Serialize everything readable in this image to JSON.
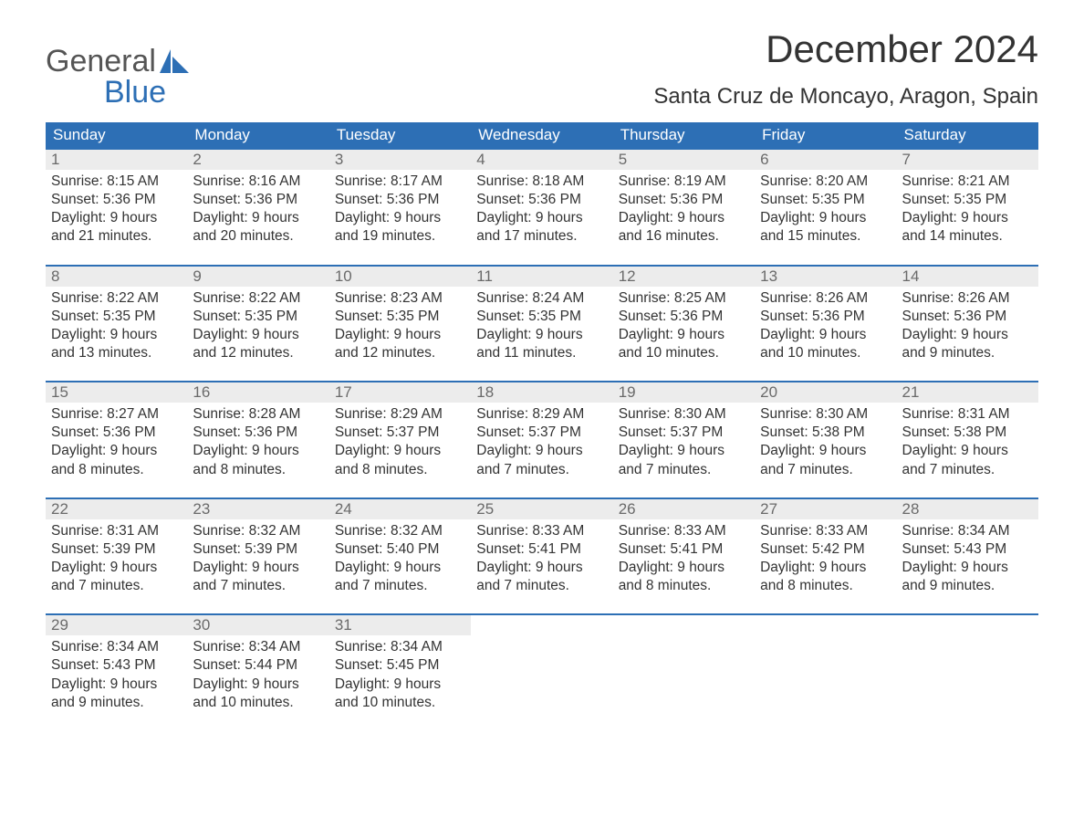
{
  "brand": {
    "word1": "General",
    "word2": "Blue",
    "color_accent": "#2d6fb5"
  },
  "title": "December 2024",
  "subtitle": "Santa Cruz de Moncayo, Aragon, Spain",
  "colors": {
    "header_bg": "#2d6fb5",
    "header_text": "#ffffff",
    "daynum_bg": "#ececec",
    "daynum_text": "#6a6a6a",
    "body_text": "#333333",
    "row_border": "#2d6fb5",
    "page_bg": "#ffffff"
  },
  "fonts": {
    "title_size_pt": 32,
    "subtitle_size_pt": 18,
    "dayhead_size_pt": 13,
    "body_size_pt": 12
  },
  "day_headers": [
    "Sunday",
    "Monday",
    "Tuesday",
    "Wednesday",
    "Thursday",
    "Friday",
    "Saturday"
  ],
  "labels": {
    "sunrise": "Sunrise:",
    "sunset": "Sunset:",
    "daylight": "Daylight:"
  },
  "weeks": [
    [
      {
        "n": "1",
        "rise": "8:15 AM",
        "set": "5:36 PM",
        "dl": "9 hours and 21 minutes."
      },
      {
        "n": "2",
        "rise": "8:16 AM",
        "set": "5:36 PM",
        "dl": "9 hours and 20 minutes."
      },
      {
        "n": "3",
        "rise": "8:17 AM",
        "set": "5:36 PM",
        "dl": "9 hours and 19 minutes."
      },
      {
        "n": "4",
        "rise": "8:18 AM",
        "set": "5:36 PM",
        "dl": "9 hours and 17 minutes."
      },
      {
        "n": "5",
        "rise": "8:19 AM",
        "set": "5:36 PM",
        "dl": "9 hours and 16 minutes."
      },
      {
        "n": "6",
        "rise": "8:20 AM",
        "set": "5:35 PM",
        "dl": "9 hours and 15 minutes."
      },
      {
        "n": "7",
        "rise": "8:21 AM",
        "set": "5:35 PM",
        "dl": "9 hours and 14 minutes."
      }
    ],
    [
      {
        "n": "8",
        "rise": "8:22 AM",
        "set": "5:35 PM",
        "dl": "9 hours and 13 minutes."
      },
      {
        "n": "9",
        "rise": "8:22 AM",
        "set": "5:35 PM",
        "dl": "9 hours and 12 minutes."
      },
      {
        "n": "10",
        "rise": "8:23 AM",
        "set": "5:35 PM",
        "dl": "9 hours and 12 minutes."
      },
      {
        "n": "11",
        "rise": "8:24 AM",
        "set": "5:35 PM",
        "dl": "9 hours and 11 minutes."
      },
      {
        "n": "12",
        "rise": "8:25 AM",
        "set": "5:36 PM",
        "dl": "9 hours and 10 minutes."
      },
      {
        "n": "13",
        "rise": "8:26 AM",
        "set": "5:36 PM",
        "dl": "9 hours and 10 minutes."
      },
      {
        "n": "14",
        "rise": "8:26 AM",
        "set": "5:36 PM",
        "dl": "9 hours and 9 minutes."
      }
    ],
    [
      {
        "n": "15",
        "rise": "8:27 AM",
        "set": "5:36 PM",
        "dl": "9 hours and 8 minutes."
      },
      {
        "n": "16",
        "rise": "8:28 AM",
        "set": "5:36 PM",
        "dl": "9 hours and 8 minutes."
      },
      {
        "n": "17",
        "rise": "8:29 AM",
        "set": "5:37 PM",
        "dl": "9 hours and 8 minutes."
      },
      {
        "n": "18",
        "rise": "8:29 AM",
        "set": "5:37 PM",
        "dl": "9 hours and 7 minutes."
      },
      {
        "n": "19",
        "rise": "8:30 AM",
        "set": "5:37 PM",
        "dl": "9 hours and 7 minutes."
      },
      {
        "n": "20",
        "rise": "8:30 AM",
        "set": "5:38 PM",
        "dl": "9 hours and 7 minutes."
      },
      {
        "n": "21",
        "rise": "8:31 AM",
        "set": "5:38 PM",
        "dl": "9 hours and 7 minutes."
      }
    ],
    [
      {
        "n": "22",
        "rise": "8:31 AM",
        "set": "5:39 PM",
        "dl": "9 hours and 7 minutes."
      },
      {
        "n": "23",
        "rise": "8:32 AM",
        "set": "5:39 PM",
        "dl": "9 hours and 7 minutes."
      },
      {
        "n": "24",
        "rise": "8:32 AM",
        "set": "5:40 PM",
        "dl": "9 hours and 7 minutes."
      },
      {
        "n": "25",
        "rise": "8:33 AM",
        "set": "5:41 PM",
        "dl": "9 hours and 7 minutes."
      },
      {
        "n": "26",
        "rise": "8:33 AM",
        "set": "5:41 PM",
        "dl": "9 hours and 8 minutes."
      },
      {
        "n": "27",
        "rise": "8:33 AM",
        "set": "5:42 PM",
        "dl": "9 hours and 8 minutes."
      },
      {
        "n": "28",
        "rise": "8:34 AM",
        "set": "5:43 PM",
        "dl": "9 hours and 9 minutes."
      }
    ],
    [
      {
        "n": "29",
        "rise": "8:34 AM",
        "set": "5:43 PM",
        "dl": "9 hours and 9 minutes."
      },
      {
        "n": "30",
        "rise": "8:34 AM",
        "set": "5:44 PM",
        "dl": "9 hours and 10 minutes."
      },
      {
        "n": "31",
        "rise": "8:34 AM",
        "set": "5:45 PM",
        "dl": "9 hours and 10 minutes."
      },
      null,
      null,
      null,
      null
    ]
  ]
}
